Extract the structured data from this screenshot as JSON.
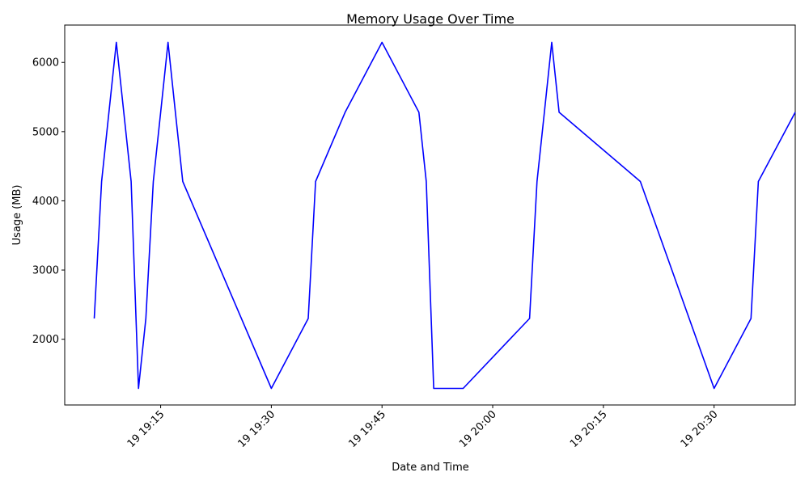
{
  "chart_data": {
    "type": "line",
    "title": "Memory Usage Over Time",
    "xlabel": "Date and Time",
    "ylabel": "Usage (MB)",
    "x_format": "HH:MM",
    "x_range": [
      "19:02:00",
      "20:41:00"
    ],
    "ylim": [
      1050,
      6540
    ],
    "y_ticks": [
      2000,
      3000,
      4000,
      5000,
      6000
    ],
    "x_ticks": [
      {
        "time": "19:15",
        "label": "19 19:15"
      },
      {
        "time": "19:30",
        "label": "19 19:30"
      },
      {
        "time": "19:45",
        "label": "19 19:45"
      },
      {
        "time": "20:00",
        "label": "19 20:00"
      },
      {
        "time": "20:15",
        "label": "19 20:15"
      },
      {
        "time": "20:30",
        "label": "19 20:30"
      }
    ],
    "grid": false,
    "series": [
      {
        "color": "#0000ff",
        "points": [
          {
            "x": "19:06",
            "y": 2300
          },
          {
            "x": "19:07",
            "y": 4280
          },
          {
            "x": "19:09",
            "y": 6290
          },
          {
            "x": "19:10",
            "y": 5280
          },
          {
            "x": "19:11",
            "y": 4280
          },
          {
            "x": "19:12",
            "y": 1290
          },
          {
            "x": "19:13",
            "y": 2300
          },
          {
            "x": "19:14",
            "y": 4280
          },
          {
            "x": "19:15",
            "y": 5280
          },
          {
            "x": "19:16",
            "y": 6290
          },
          {
            "x": "19:17",
            "y": 5280
          },
          {
            "x": "19:18",
            "y": 4280
          },
          {
            "x": "19:30",
            "y": 1290
          },
          {
            "x": "19:35",
            "y": 2300
          },
          {
            "x": "19:36",
            "y": 4280
          },
          {
            "x": "19:40",
            "y": 5280
          },
          {
            "x": "19:45",
            "y": 6290
          },
          {
            "x": "19:50",
            "y": 5280
          },
          {
            "x": "19:51",
            "y": 4280
          },
          {
            "x": "19:52",
            "y": 1290
          },
          {
            "x": "19:56",
            "y": 1290
          },
          {
            "x": "20:05",
            "y": 2300
          },
          {
            "x": "20:06",
            "y": 4280
          },
          {
            "x": "20:07",
            "y": 5280
          },
          {
            "x": "20:08",
            "y": 6290
          },
          {
            "x": "20:09",
            "y": 5280
          },
          {
            "x": "20:20",
            "y": 4280
          },
          {
            "x": "20:30",
            "y": 1290
          },
          {
            "x": "20:35",
            "y": 2300
          },
          {
            "x": "20:36",
            "y": 4280
          },
          {
            "x": "20:41",
            "y": 5280
          }
        ]
      }
    ]
  }
}
